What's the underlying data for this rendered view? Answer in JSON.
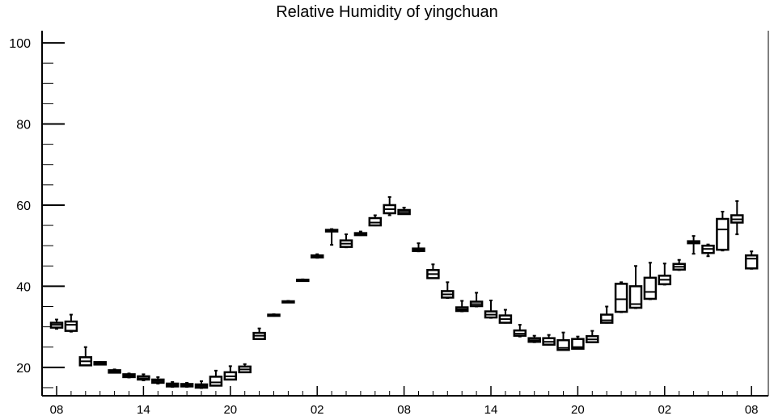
{
  "chart_data": {
    "type": "box",
    "title": "Relative Humidity of yingchuan",
    "xlabel": "",
    "ylabel": "",
    "ylim": [
      13,
      103
    ],
    "yticks": [
      20,
      40,
      60,
      80,
      100
    ],
    "xlim": [
      0,
      49
    ],
    "xticks": [
      {
        "pos": 1,
        "label": "08"
      },
      {
        "pos": 7,
        "label": "14"
      },
      {
        "pos": 13,
        "label": "20"
      },
      {
        "pos": 19,
        "label": "02"
      },
      {
        "pos": 25,
        "label": "08"
      },
      {
        "pos": 31,
        "label": "14"
      },
      {
        "pos": 37,
        "label": "20"
      },
      {
        "pos": 43,
        "label": "02"
      },
      {
        "pos": 49,
        "label": "08"
      }
    ],
    "grid": false,
    "boxes": [
      {
        "x": 1,
        "low": 29.5,
        "q1": 29.8,
        "median": 30.5,
        "q3": 31.0,
        "high": 31.8
      },
      {
        "x": 2,
        "low": 28.8,
        "q1": 29.0,
        "median": 30.5,
        "q3": 31.3,
        "high": 33.0
      },
      {
        "x": 3,
        "low": 20.5,
        "q1": 20.5,
        "median": 21.5,
        "q3": 22.5,
        "high": 25.0
      },
      {
        "x": 4,
        "low": 20.7,
        "q1": 20.7,
        "median": 21.0,
        "q3": 21.3,
        "high": 21.3
      },
      {
        "x": 5,
        "low": 18.7,
        "q1": 18.7,
        "median": 19.0,
        "q3": 19.3,
        "high": 19.5
      },
      {
        "x": 6,
        "low": 17.5,
        "q1": 17.6,
        "median": 17.9,
        "q3": 18.3,
        "high": 18.5
      },
      {
        "x": 7,
        "low": 16.8,
        "q1": 17.0,
        "median": 17.3,
        "q3": 17.8,
        "high": 18.3
      },
      {
        "x": 8,
        "low": 16.0,
        "q1": 16.2,
        "median": 16.6,
        "q3": 17.0,
        "high": 17.6
      },
      {
        "x": 9,
        "low": 15.2,
        "q1": 15.3,
        "median": 15.6,
        "q3": 16.0,
        "high": 16.4
      },
      {
        "x": 10,
        "low": 15.2,
        "q1": 15.3,
        "median": 15.6,
        "q3": 15.9,
        "high": 16.2
      },
      {
        "x": 11,
        "low": 14.9,
        "q1": 15.0,
        "median": 15.4,
        "q3": 15.8,
        "high": 16.6
      },
      {
        "x": 12,
        "low": 15.5,
        "q1": 15.5,
        "median": 16.3,
        "q3": 17.7,
        "high": 19.2
      },
      {
        "x": 13,
        "low": 17.0,
        "q1": 17.0,
        "median": 17.8,
        "q3": 18.8,
        "high": 20.3
      },
      {
        "x": 14,
        "low": 18.8,
        "q1": 18.8,
        "median": 19.5,
        "q3": 20.2,
        "high": 20.8
      },
      {
        "x": 15,
        "low": 27.0,
        "q1": 27.0,
        "median": 27.8,
        "q3": 28.5,
        "high": 29.6
      },
      {
        "x": 16,
        "low": 32.7,
        "q1": 32.8,
        "median": 32.9,
        "q3": 33.0,
        "high": 33.1
      },
      {
        "x": 17,
        "low": 36.0,
        "q1": 36.1,
        "median": 36.2,
        "q3": 36.3,
        "high": 36.4
      },
      {
        "x": 18,
        "low": 41.3,
        "q1": 41.4,
        "median": 41.5,
        "q3": 41.6,
        "high": 41.7
      },
      {
        "x": 19,
        "low": 47.0,
        "q1": 47.1,
        "median": 47.3,
        "q3": 47.6,
        "high": 47.9
      },
      {
        "x": 20,
        "low": 50.2,
        "q1": 53.5,
        "median": 53.7,
        "q3": 53.9,
        "high": 54.1
      },
      {
        "x": 21,
        "low": 49.6,
        "q1": 49.7,
        "median": 50.5,
        "q3": 51.3,
        "high": 52.8
      },
      {
        "x": 22,
        "low": 52.6,
        "q1": 52.6,
        "median": 52.8,
        "q3": 53.1,
        "high": 53.5
      },
      {
        "x": 23,
        "low": 55.0,
        "q1": 55.0,
        "median": 55.7,
        "q3": 56.8,
        "high": 57.5
      },
      {
        "x": 24,
        "low": 57.5,
        "q1": 58.0,
        "median": 59.0,
        "q3": 60.0,
        "high": 62.0
      },
      {
        "x": 25,
        "low": 57.8,
        "q1": 57.8,
        "median": 58.3,
        "q3": 58.8,
        "high": 59.4
      },
      {
        "x": 26,
        "low": 48.6,
        "q1": 48.7,
        "median": 49.0,
        "q3": 49.3,
        "high": 50.6
      },
      {
        "x": 27,
        "low": 42.0,
        "q1": 42.0,
        "median": 43.0,
        "q3": 44.0,
        "high": 45.4
      },
      {
        "x": 28,
        "low": 37.1,
        "q1": 37.2,
        "median": 38.0,
        "q3": 38.8,
        "high": 41.0
      },
      {
        "x": 29,
        "low": 33.8,
        "q1": 33.9,
        "median": 34.3,
        "q3": 34.8,
        "high": 36.4
      },
      {
        "x": 30,
        "low": 35.0,
        "q1": 35.1,
        "median": 35.6,
        "q3": 36.2,
        "high": 38.4
      },
      {
        "x": 31,
        "low": 32.2,
        "q1": 32.3,
        "median": 33.0,
        "q3": 33.8,
        "high": 36.5
      },
      {
        "x": 32,
        "low": 31.0,
        "q1": 31.0,
        "median": 31.9,
        "q3": 32.8,
        "high": 34.2
      },
      {
        "x": 33,
        "low": 27.6,
        "q1": 27.8,
        "median": 28.3,
        "q3": 29.1,
        "high": 30.5
      },
      {
        "x": 34,
        "low": 26.2,
        "q1": 26.3,
        "median": 26.7,
        "q3": 27.2,
        "high": 27.8
      },
      {
        "x": 35,
        "low": 25.6,
        "q1": 25.6,
        "median": 26.3,
        "q3": 27.2,
        "high": 28.0
      },
      {
        "x": 36,
        "low": 24.3,
        "q1": 24.3,
        "median": 24.8,
        "q3": 26.7,
        "high": 28.6
      },
      {
        "x": 37,
        "low": 24.6,
        "q1": 24.6,
        "median": 25.0,
        "q3": 27.0,
        "high": 27.6
      },
      {
        "x": 38,
        "low": 26.2,
        "q1": 26.2,
        "median": 26.9,
        "q3": 27.7,
        "high": 29.0
      },
      {
        "x": 39,
        "low": 31.0,
        "q1": 31.0,
        "median": 31.6,
        "q3": 33.0,
        "high": 35.0
      },
      {
        "x": 40,
        "low": 33.6,
        "q1": 33.7,
        "median": 36.8,
        "q3": 40.6,
        "high": 41.0
      },
      {
        "x": 41,
        "low": 34.6,
        "q1": 34.7,
        "median": 35.6,
        "q3": 40.0,
        "high": 45.0
      },
      {
        "x": 42,
        "low": 36.8,
        "q1": 36.9,
        "median": 38.6,
        "q3": 42.1,
        "high": 45.8
      },
      {
        "x": 43,
        "low": 40.4,
        "q1": 40.5,
        "median": 41.6,
        "q3": 42.6,
        "high": 45.6
      },
      {
        "x": 44,
        "low": 44.0,
        "q1": 44.1,
        "median": 44.8,
        "q3": 45.5,
        "high": 46.5
      },
      {
        "x": 45,
        "low": 48.0,
        "q1": 50.6,
        "median": 50.8,
        "q3": 51.1,
        "high": 52.4
      },
      {
        "x": 46,
        "low": 47.4,
        "q1": 48.2,
        "median": 49.2,
        "q3": 50.0,
        "high": 50.3
      },
      {
        "x": 47,
        "low": 48.8,
        "q1": 49.0,
        "median": 54.0,
        "q3": 56.6,
        "high": 58.4
      },
      {
        "x": 48,
        "low": 52.8,
        "q1": 55.7,
        "median": 56.5,
        "q3": 57.5,
        "high": 61.0
      },
      {
        "x": 49,
        "low": 44.3,
        "q1": 44.4,
        "median": 46.8,
        "q3": 47.6,
        "high": 48.6
      }
    ]
  }
}
